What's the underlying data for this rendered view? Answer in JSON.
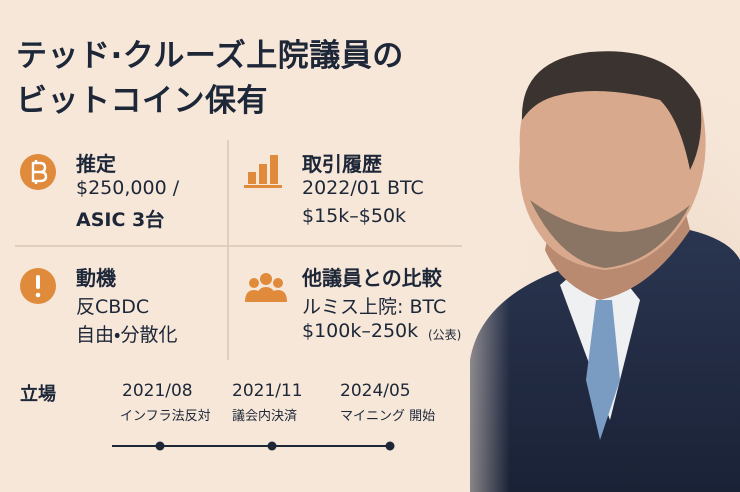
{
  "title": {
    "lines": [
      "テッド·クルーズ上院議員の",
      "ビットコイン保有"
    ]
  },
  "cards": [
    {
      "heading": "推定",
      "lines": [
        "$250,000 /",
        "ASIC 3台"
      ]
    },
    {
      "heading": "取引履歴",
      "lines": [
        "2022/01 BTC",
        "$15k–$50k"
      ]
    },
    {
      "heading": "動機",
      "lines": [
        "反CBDC",
        "自由・分散化"
      ]
    },
    {
      "heading": "他議員との比較",
      "lines": [
        "ルミス上院: BTC",
        "$100k–250k"
      ],
      "note": "(公表)"
    }
  ],
  "timeline": {
    "label": "立場",
    "events": [
      {
        "date": "2021/08",
        "text": "インフラ法反対"
      },
      {
        "date": "2021/11",
        "text": "議会内決済"
      },
      {
        "date": "2024/05",
        "text": "マイニング 開始"
      }
    ]
  }
}
